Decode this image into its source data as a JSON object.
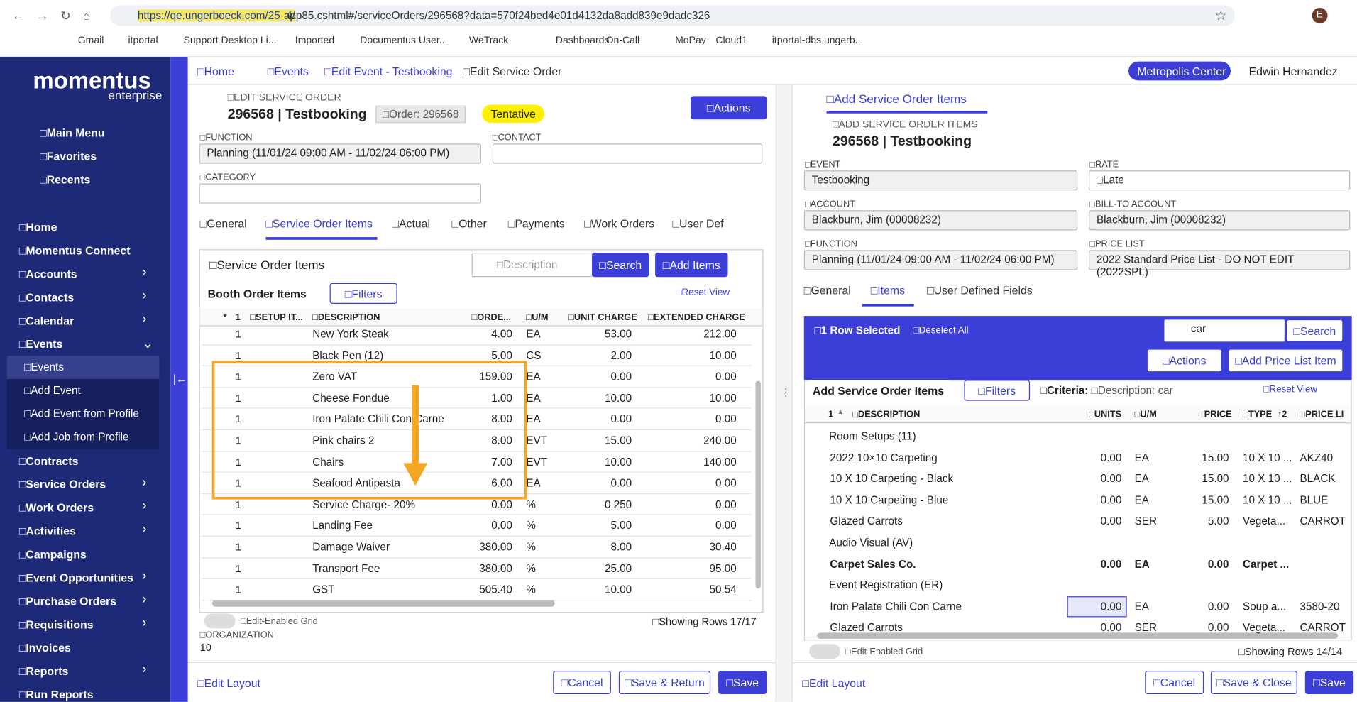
{
  "browser": {
    "url_highlight": "https://qe.ungerboeck.com/25_4/",
    "url_rest": "app85.cshtml#/serviceOrders/296568?data=570f24bed4e01d4132da8add839e9dadc326",
    "avatar": "E",
    "bookmarks": [
      "Gmail",
      "itportal",
      "Support Desktop Li...",
      "Imported",
      "Documentus User...",
      "WeTrack",
      "Dashboards",
      "On-Call",
      "MoPay",
      "Cloud1",
      "itportal-dbs.ungerb..."
    ]
  },
  "sidebar": {
    "logo": "momentus",
    "logo_sub": "enterprise",
    "top": [
      "□Main Menu",
      "□Favorites",
      "□Recents"
    ],
    "nav": [
      {
        "label": "□Home",
        "arrow": false
      },
      {
        "label": "□Momentus Connect",
        "arrow": false
      },
      {
        "label": "□Accounts",
        "arrow": true
      },
      {
        "label": "□Contacts",
        "arrow": true
      },
      {
        "label": "□Calendar",
        "arrow": true
      },
      {
        "label": "□Events",
        "arrow": true,
        "open": true,
        "sub": [
          {
            "label": "□Events",
            "selected": true
          },
          {
            "label": "□Add Event"
          },
          {
            "label": "□Add Event from Profile"
          },
          {
            "label": "□Add Job from Profile"
          }
        ]
      },
      {
        "label": "□Contracts",
        "arrow": false
      },
      {
        "label": "□Service Orders",
        "arrow": true
      },
      {
        "label": "□Work Orders",
        "arrow": true
      },
      {
        "label": "□Activities",
        "arrow": true
      },
      {
        "label": "□Campaigns",
        "arrow": false
      },
      {
        "label": "□Event Opportunities",
        "arrow": true
      },
      {
        "label": "□Purchase Orders",
        "arrow": true
      },
      {
        "label": "□Requisitions",
        "arrow": true
      },
      {
        "label": "□Invoices",
        "arrow": false
      },
      {
        "label": "□Reports",
        "arrow": true
      },
      {
        "label": "□Run Reports",
        "arrow": false
      }
    ]
  },
  "header": {
    "breadcrumbs": [
      "□Home",
      "□Events",
      "□Edit Event - Testbooking",
      "□Edit Service Order"
    ],
    "center": "Metropolis Center",
    "user": "Edwin Hernandez"
  },
  "left": {
    "heading": "□EDIT SERVICE ORDER",
    "title": "296568 | Testbooking",
    "order": "□Order: 296568",
    "status": "Tentative",
    "actions": "□Actions",
    "function_label": "□FUNCTION",
    "function_value": "Planning (11/01/24 09:00 AM - 11/02/24 06:00 PM)",
    "contact_label": "□CONTACT",
    "category_label": "□CATEGORY",
    "tabs": [
      "□General",
      "□Service Order Items",
      "□Actual",
      "□Other",
      "□Payments",
      "□Work Orders",
      "□User Def"
    ],
    "active_tab": 1,
    "grid_title": "□Service Order Items",
    "search_placeholder": "□Description",
    "search": "□Search",
    "add": "□Add Items",
    "view": "Booth Order Items",
    "filters": "□Filters",
    "reset": "□Reset View",
    "columns": [
      "*",
      "1",
      "□SETUP IT...",
      "□DESCRIPTION",
      "□ORDE...",
      "□U/M",
      "□UNIT CHARGE",
      "□EXTENDED CHARGE"
    ],
    "rows": [
      [
        "1",
        "New York Steak",
        "4.00",
        "EA",
        "53.00",
        "212.00"
      ],
      [
        "1",
        "Black Pen (12)",
        "5.00",
        "CS",
        "2.00",
        "10.00"
      ],
      [
        "1",
        "Zero VAT",
        "159.00",
        "EA",
        "0.00",
        "0.00"
      ],
      [
        "1",
        "Cheese Fondue",
        "1.00",
        "EA",
        "10.00",
        "10.00"
      ],
      [
        "1",
        "Iron Palate Chili Con Carne",
        "8.00",
        "EA",
        "0.00",
        "0.00"
      ],
      [
        "1",
        "Pink chairs 2",
        "8.00",
        "EVT",
        "15.00",
        "240.00"
      ],
      [
        "1",
        "Chairs",
        "7.00",
        "EVT",
        "10.00",
        "140.00"
      ],
      [
        "1",
        "Seafood Antipasta",
        "6.00",
        "EA",
        "0.00",
        "0.00"
      ],
      [
        "1",
        "Service Charge- 20%",
        "0.00",
        "%",
        "0.250",
        "0.00"
      ],
      [
        "1",
        "Landing Fee",
        "0.00",
        "%",
        "5.00",
        "0.00"
      ],
      [
        "1",
        "Damage Waiver",
        "380.00",
        "%",
        "8.00",
        "30.40"
      ],
      [
        "1",
        "Transport Fee",
        "380.00",
        "%",
        "25.00",
        "95.00"
      ],
      [
        "1",
        "GST",
        "505.40",
        "%",
        "10.00",
        "50.54"
      ]
    ],
    "toggle": "□Edit-Enabled Grid",
    "showing": "□Showing Rows 17/17",
    "org_label": "□ORGANIZATION",
    "org_value": "10",
    "edit_layout": "□Edit Layout",
    "buttons": [
      "□Cancel",
      "□Save & Return",
      "□Save"
    ]
  },
  "right": {
    "tab": "□Add Service Order Items",
    "heading": "□ADD SERVICE ORDER ITEMS",
    "title": "296568 | Testbooking",
    "fields": [
      {
        "label": "□EVENT",
        "value": "Testbooking"
      },
      {
        "label": "□RATE",
        "value": "□Late"
      },
      {
        "label": "□ACCOUNT",
        "value": "Blackburn, Jim (00008232)"
      },
      {
        "label": "□BILL-TO ACCOUNT",
        "value": "Blackburn, Jim (00008232)"
      },
      {
        "label": "□FUNCTION",
        "value": "Planning (11/01/24 09:00 AM - 11/02/24 06:00 PM)"
      },
      {
        "label": "□PRICE LIST",
        "value": "2022 Standard Price List - DO NOT EDIT (2022SPL)"
      }
    ],
    "tabs": [
      "□General",
      "□Items",
      "□User Defined Fields"
    ],
    "active_tab": 1,
    "selected": "□1 Row Selected",
    "deselect": "□Deselect All",
    "search_value": "car",
    "search": "□Search",
    "actions": "□Actions",
    "add_price": "□Add Price List Item",
    "view": "Add Service Order Items",
    "filters": "□Filters",
    "criteria": "□Criteria:",
    "criteria_value": "□Description: car",
    "reset": "□Reset View",
    "columns": [
      "1",
      "*",
      "□DESCRIPTION",
      "□UNITS",
      "□U/M",
      "□PRICE",
      "□TYPE",
      "↑2",
      "□PRICE LI"
    ],
    "rows": [
      {
        "group": "Room Setups (11)"
      },
      {
        "cells": [
          "2022 10×10 Carpeting",
          "0.00",
          "EA",
          "15.00",
          "10 X 10 ...",
          "AKZ40"
        ]
      },
      {
        "cells": [
          "10 X 10 Carpeting - Black",
          "0.00",
          "EA",
          "15.00",
          "10 X 10 ...",
          "BLACK"
        ]
      },
      {
        "cells": [
          "10 X 10 Carpeting - Blue",
          "0.00",
          "EA",
          "15.00",
          "10 X 10 ...",
          "BLUE"
        ]
      },
      {
        "cells": [
          "Glazed Carrots",
          "0.00",
          "SER",
          "5.00",
          "Vegeta...",
          "CARROT"
        ]
      },
      {
        "group": "Audio Visual (AV)"
      },
      {
        "cells": [
          "Carpet Sales Co.",
          "0.00",
          "EA",
          "0.00",
          "Carpet ...",
          ""
        ],
        "bold": true
      },
      {
        "group": "Event Registration (ER)"
      },
      {
        "cells": [
          "Iron Palate Chili Con Carne",
          "0.00",
          "EA",
          "0.00",
          "Soup a...",
          "3580-20"
        ],
        "selected": true
      },
      {
        "cells": [
          "Glazed Carrots",
          "0.00",
          "SER",
          "0.00",
          "Vegeta...",
          "CARROT"
        ]
      }
    ],
    "toggle": "□Edit-Enabled Grid",
    "showing": "□Showing Rows 14/14",
    "edit_layout": "□Edit Layout",
    "buttons": [
      "□Cancel",
      "□Save & Close",
      "□Save"
    ]
  }
}
